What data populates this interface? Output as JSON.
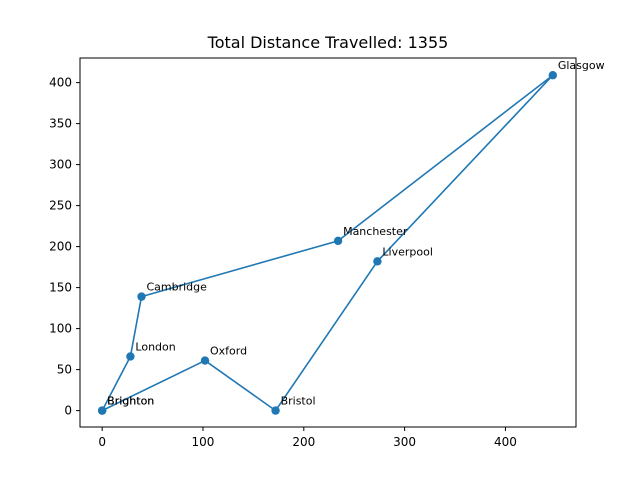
{
  "chart_data": {
    "type": "line",
    "title": "Total Distance Travelled: 1355",
    "xlabel": "",
    "ylabel": "",
    "xlim": [
      -22,
      470
    ],
    "ylim": [
      -20,
      430
    ],
    "x_ticks": [
      0,
      100,
      200,
      300,
      400
    ],
    "y_ticks": [
      0,
      50,
      100,
      150,
      200,
      250,
      300,
      350,
      400
    ],
    "grid": false,
    "color": "#1f77b4",
    "points": [
      {
        "label": "Brighton",
        "x": 0,
        "y": 0
      },
      {
        "label": "London",
        "x": 28,
        "y": 66
      },
      {
        "label": "Cambridge",
        "x": 39,
        "y": 139
      },
      {
        "label": "Manchester",
        "x": 234,
        "y": 207
      },
      {
        "label": "Glasgow",
        "x": 447,
        "y": 409
      },
      {
        "label": "Liverpool",
        "x": 273,
        "y": 182
      },
      {
        "label": "Bristol",
        "x": 172,
        "y": 0
      },
      {
        "label": "Oxford",
        "x": 102,
        "y": 61
      },
      {
        "label": "Brighton",
        "x": 0,
        "y": 0
      }
    ]
  }
}
